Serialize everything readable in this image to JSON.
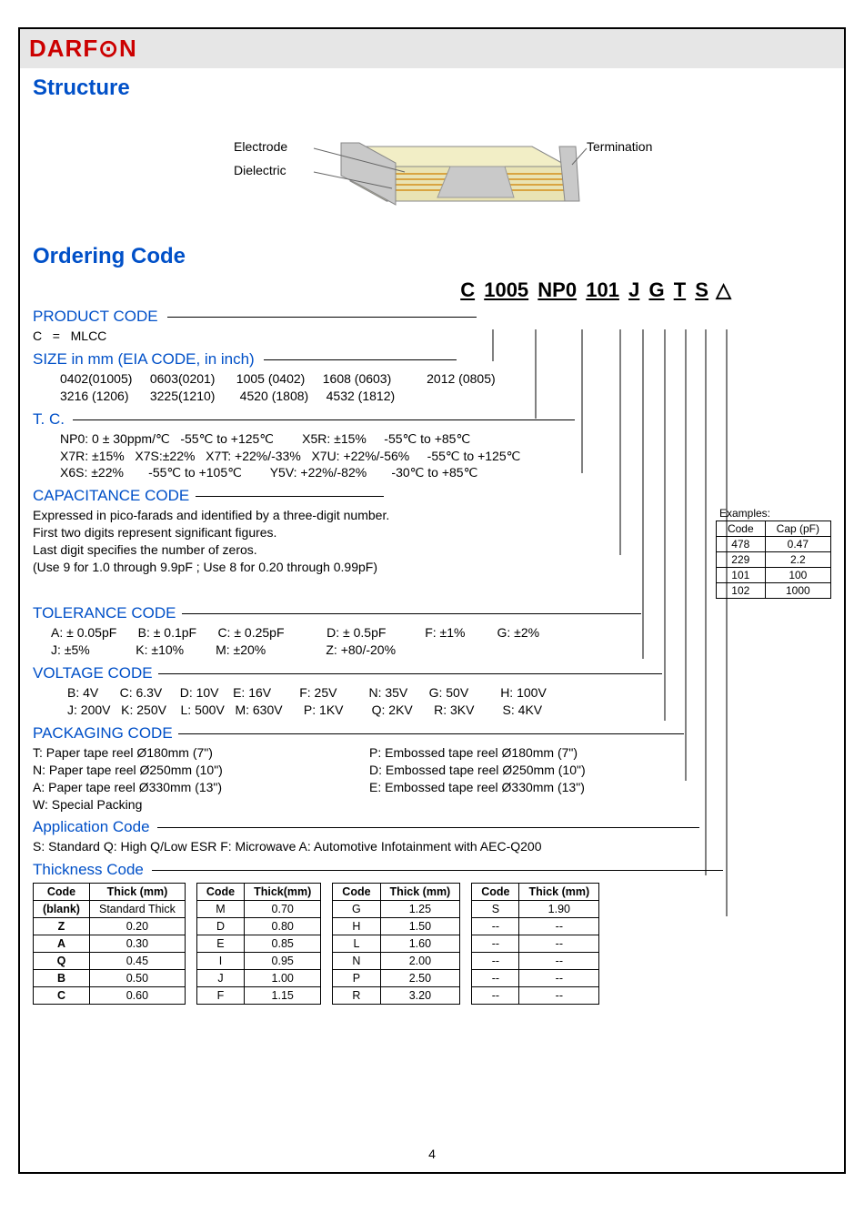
{
  "logo_text": "DARF⊙N",
  "section_structure": "Structure",
  "section_ordering": "Ordering Code",
  "diagram": {
    "electrode": "Electrode",
    "dielectric": "Dielectric",
    "termination": "Termination"
  },
  "order_example": [
    "C",
    "1005",
    "NP0",
    "101",
    "J",
    "G",
    "T",
    "S",
    "△"
  ],
  "product_code": {
    "head": "PRODUCT CODE",
    "text": "C   =   MLCC"
  },
  "size": {
    "head": "SIZE in mm (EIA CODE, in inch)",
    "line1": "0402(01005)     0603(0201)      1005 (0402)     1608 (0603)          2012 (0805)",
    "line2": "3216 (1206)      3225(1210)       4520 (1808)     4532 (1812)"
  },
  "tc": {
    "head": "T. C.",
    "line1": "NP0: 0 ± 30ppm/℃   -55℃ to +125℃        X5R: ±15%     -55℃ to +85℃",
    "line2": "X7R: ±15%   X7S:±22%   X7T: +22%/-33%   X7U: +22%/-56%     -55℃ to +125℃",
    "line3": "X6S: ±22%       -55℃ to +105℃        Y5V: +22%/-82%       -30℃ to +85℃"
  },
  "cap": {
    "head": "CAPACITANCE CODE",
    "line1": "Expressed in pico-farads and identified by a three-digit number.",
    "line2": "First two digits represent significant figures.",
    "line3": "Last digit specifies the number of zeros.",
    "line4": "(Use 9 for 1.0 through 9.9pF ;   Use 8 for 0.20 through 0.99pF)",
    "examples_label": "Examples:",
    "table": {
      "headers": [
        "Code",
        "Cap (pF)"
      ],
      "rows": [
        [
          "478",
          "0.47"
        ],
        [
          "229",
          "2.2"
        ],
        [
          "101",
          "100"
        ],
        [
          "102",
          "1000"
        ]
      ]
    }
  },
  "tol": {
    "head": "TOLERANCE CODE",
    "line1": "A: ± 0.05pF      B: ± 0.1pF      C: ± 0.25pF            D: ± 0.5pF           F: ±1%         G: ±2%",
    "line2": "J: ±5%             K: ±10%         M: ±20%                 Z: +80/-20%"
  },
  "volt": {
    "head": "VOLTAGE CODE",
    "line1": "B: 4V      C: 6.3V     D: 10V    E: 16V        F: 25V         N: 35V      G: 50V         H: 100V",
    "line2": "J: 200V   K: 250V    L: 500V   M: 630V      P: 1KV        Q: 2KV      R: 3KV        S: 4KV"
  },
  "pack": {
    "head": "PACKAGING CODE",
    "left": [
      "T: Paper tape reel Ø180mm (7\")",
      "N: Paper tape reel Ø250mm (10\")",
      "A: Paper tape reel Ø330mm (13\")",
      "W: Special Packing"
    ],
    "right": [
      "P: Embossed tape reel Ø180mm (7\")",
      "D: Embossed tape reel Ø250mm (10\")",
      "E: Embossed tape reel Ø330mm (13\")"
    ]
  },
  "app": {
    "head": "Application Code",
    "line1": "S: Standard   Q: High Q/Low ESR   F: Microwave A: Automotive Infotainment with AEC-Q200"
  },
  "thick": {
    "head": "Thickness Code",
    "headers": [
      "Code",
      "Thick (mm)",
      "Code",
      "Thick(mm)",
      "Code",
      "Thick (mm)",
      "Code",
      "Thick (mm)"
    ],
    "rows": [
      [
        "(blank)",
        "Standard Thick",
        "M",
        "0.70",
        "G",
        "1.25",
        "S",
        "1.90"
      ],
      [
        "Z",
        "0.20",
        "D",
        "0.80",
        "H",
        "1.50",
        "--",
        "--"
      ],
      [
        "A",
        "0.30",
        "E",
        "0.85",
        "L",
        "1.60",
        "--",
        "--"
      ],
      [
        "Q",
        "0.45",
        "I",
        "0.95",
        "N",
        "2.00",
        "--",
        "--"
      ],
      [
        "B",
        "0.50",
        "J",
        "1.00",
        "P",
        "2.50",
        "--",
        "--"
      ],
      [
        "C",
        "0.60",
        "F",
        "1.15",
        "R",
        "3.20",
        "--",
        "--"
      ]
    ]
  },
  "pagenum": "4",
  "colors": {
    "heading": "#0050c8",
    "logo": "#c00000",
    "border": "#000000",
    "header_bg": "#e6e6e6"
  }
}
